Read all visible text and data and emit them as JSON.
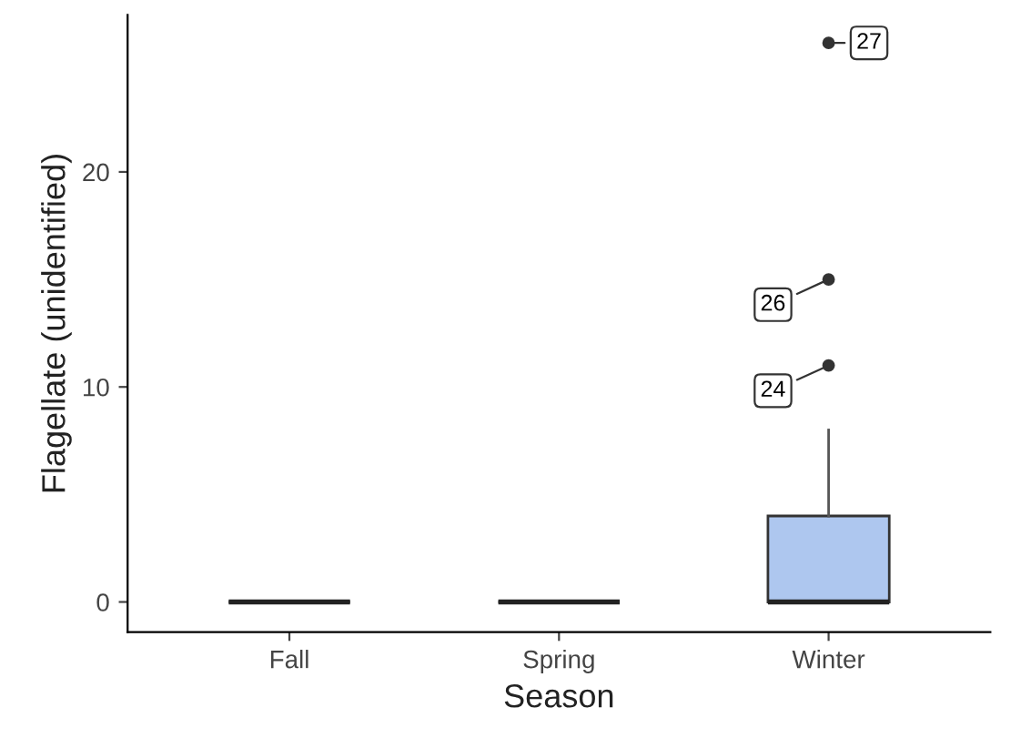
{
  "chart_data": {
    "type": "box",
    "xlabel": "Season",
    "ylabel": "Flagellate (unidentified)",
    "categories": [
      "Fall",
      "Spring",
      "Winter"
    ],
    "boxes": [
      {
        "low": 0,
        "q1": 0,
        "median": 0,
        "q3": 0,
        "high": 0
      },
      {
        "low": 0,
        "q1": 0,
        "median": 0,
        "q3": 0,
        "high": 0
      },
      {
        "low": 0,
        "q1": 0,
        "median": 0,
        "q3": 4,
        "high": 8,
        "outliers": [
          11,
          15,
          26
        ]
      }
    ],
    "colors": [
      "#333333",
      "#333333",
      "#aec7ef"
    ],
    "ylim": [
      -1.4,
      27.3
    ],
    "yticks": [
      0,
      10,
      20
    ],
    "grid": false,
    "annotations": [
      "24",
      "26",
      "27"
    ]
  }
}
